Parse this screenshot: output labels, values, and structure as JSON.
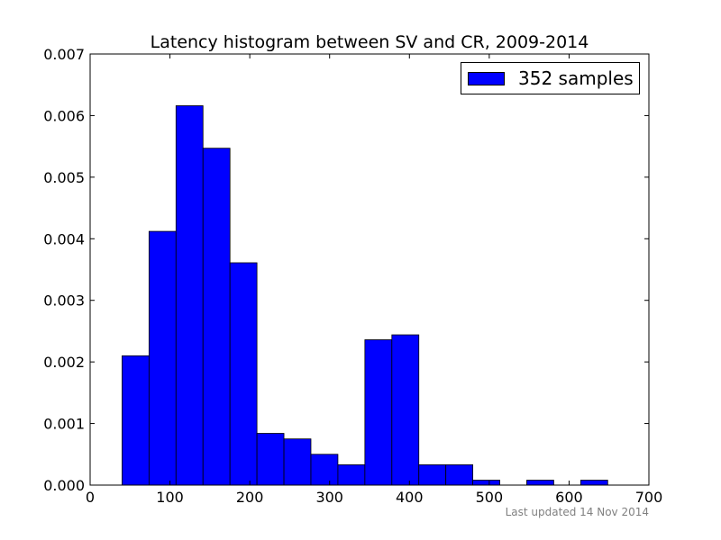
{
  "chart_data": {
    "type": "bar",
    "title": "Latency histogram between SV and CR, 2009-2014",
    "xlabel": "",
    "ylabel": "",
    "xlim": [
      0,
      700
    ],
    "ylim": [
      0,
      0.007
    ],
    "xticks": [
      "0",
      "100",
      "200",
      "300",
      "400",
      "500",
      "600",
      "700"
    ],
    "yticks": [
      "0.000",
      "0.001",
      "0.002",
      "0.003",
      "0.004",
      "0.005",
      "0.006",
      "0.007"
    ],
    "bin_width": 33.8,
    "bins": [
      {
        "start": 40,
        "value": 0.0021
      },
      {
        "start": 73.8,
        "value": 0.00412
      },
      {
        "start": 107.6,
        "value": 0.00616
      },
      {
        "start": 141.4,
        "value": 0.00547
      },
      {
        "start": 175.2,
        "value": 0.00361
      },
      {
        "start": 209,
        "value": 0.00084
      },
      {
        "start": 242.8,
        "value": 0.00075
      },
      {
        "start": 276.6,
        "value": 0.0005
      },
      {
        "start": 310.4,
        "value": 0.00033
      },
      {
        "start": 344.2,
        "value": 0.00236
      },
      {
        "start": 378,
        "value": 0.00244
      },
      {
        "start": 411.8,
        "value": 0.00033
      },
      {
        "start": 445.6,
        "value": 0.00033
      },
      {
        "start": 479.4,
        "value": 8e-05
      },
      {
        "start": 513.2,
        "value": 0
      },
      {
        "start": 547,
        "value": 8e-05
      },
      {
        "start": 580.8,
        "value": 0
      },
      {
        "start": 614.6,
        "value": 8e-05
      }
    ],
    "series": [
      {
        "name": "352 samples",
        "color": "#0000ff"
      }
    ],
    "legend_position": "top-right",
    "grid": false
  },
  "footnote": "Last updated 14 Nov 2014"
}
